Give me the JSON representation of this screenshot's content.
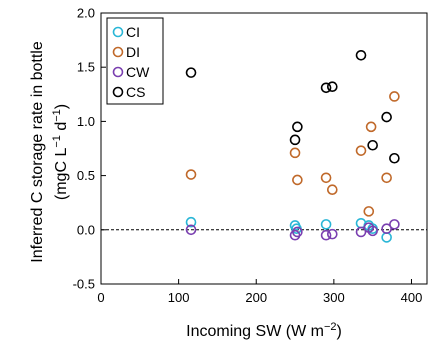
{
  "chart_data": {
    "type": "scatter",
    "xlabel": "Incoming SW (W m",
    "xlabel_sup": "−2",
    "xlabel_end": ")",
    "ylabel_line1": "Inferred C storage rate in bottle",
    "ylabel_line2_a": "(mgC L",
    "ylabel_line2_sup1": "−1",
    "ylabel_line2_b": " d",
    "ylabel_line2_sup2": "−1",
    "ylabel_line2_c": ")",
    "xlim": [
      0,
      420
    ],
    "ylim": [
      -0.5,
      2.0
    ],
    "xticks": [
      0,
      100,
      200,
      300,
      400
    ],
    "xtick_labels": [
      "0",
      "100",
      "200",
      "300",
      "400"
    ],
    "yticks": [
      -0.5,
      0.0,
      0.5,
      1.0,
      1.5,
      2.0
    ],
    "ytick_labels": [
      "-0.5",
      "0.0",
      "0.5",
      "1.0",
      "1.5",
      "2.0"
    ],
    "reference_line_y": 0.0,
    "legend_position": "top-left",
    "series": [
      {
        "name": "CI",
        "color": "#29b6d6",
        "points": [
          [
            116,
            0.07
          ],
          [
            250,
            0.04
          ],
          [
            252,
            0.01
          ],
          [
            290,
            0.05
          ],
          [
            335,
            0.06
          ],
          [
            345,
            0.04
          ],
          [
            350,
            0.01
          ],
          [
            368,
            -0.07
          ]
        ]
      },
      {
        "name": "DI",
        "color": "#c0692a",
        "points": [
          [
            116,
            0.51
          ],
          [
            250,
            0.71
          ],
          [
            253,
            0.46
          ],
          [
            290,
            0.48
          ],
          [
            298,
            0.37
          ],
          [
            335,
            0.73
          ],
          [
            348,
            0.95
          ],
          [
            345,
            0.17
          ],
          [
            368,
            0.48
          ],
          [
            378,
            1.23
          ]
        ]
      },
      {
        "name": "CW",
        "color": "#7a3fb0",
        "points": [
          [
            116,
            0.0
          ],
          [
            250,
            -0.05
          ],
          [
            253,
            -0.02
          ],
          [
            290,
            -0.05
          ],
          [
            298,
            -0.04
          ],
          [
            335,
            -0.02
          ],
          [
            345,
            0.02
          ],
          [
            350,
            -0.01
          ],
          [
            368,
            0.01
          ],
          [
            378,
            0.05
          ]
        ]
      },
      {
        "name": "CS",
        "color": "#000000",
        "points": [
          [
            116,
            1.45
          ],
          [
            250,
            0.83
          ],
          [
            253,
            0.95
          ],
          [
            290,
            1.31
          ],
          [
            298,
            1.32
          ],
          [
            335,
            1.61
          ],
          [
            350,
            0.78
          ],
          [
            368,
            1.04
          ],
          [
            378,
            0.66
          ]
        ]
      }
    ]
  }
}
